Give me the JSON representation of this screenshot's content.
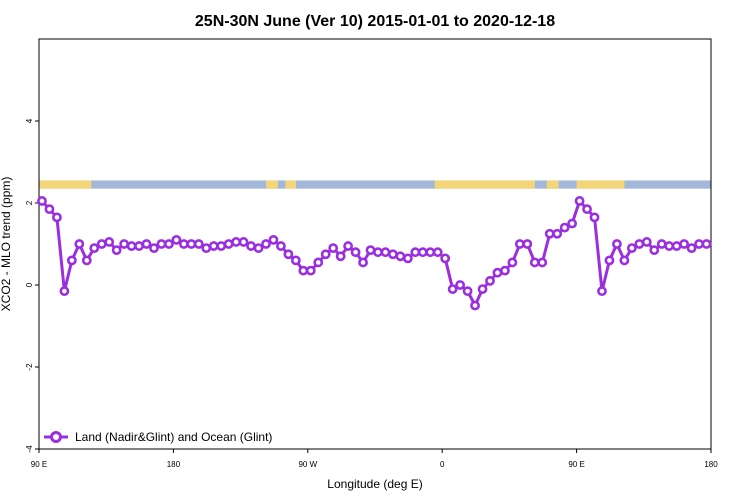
{
  "chart_data": {
    "type": "line",
    "title": "25N-30N June (Ver 10)   2015-01-01 to 2020-12-18",
    "xlabel": "Longitude (deg E)",
    "ylabel": "XCO2 - MLO trend (ppm)",
    "xlim": [
      -90,
      360
    ],
    "ylim": [
      -4,
      6
    ],
    "x_ticks": [
      {
        "value": -90,
        "label": "90 E"
      },
      {
        "value": 0,
        "label": "180"
      },
      {
        "value": 90,
        "label": "90 W"
      },
      {
        "value": 180,
        "label": "0"
      },
      {
        "value": 270,
        "label": "90 E"
      },
      {
        "value": 360,
        "label": "180"
      }
    ],
    "y_ticks": [
      {
        "value": -4,
        "label": "-4"
      },
      {
        "value": -2,
        "label": "-2"
      },
      {
        "value": 0,
        "label": "0"
      },
      {
        "value": 2,
        "label": "2"
      },
      {
        "value": 4,
        "label": "4"
      }
    ],
    "grid": false,
    "legend_position": "bottom-left",
    "series": [
      {
        "name": "Land (Nadir&Glint) and Ocean (Glint)",
        "color": "#9b2fe0",
        "x": [
          -88,
          -83,
          -78,
          -73,
          -68,
          -63,
          -58,
          -53,
          -48,
          -43,
          -38,
          -33,
          -28,
          -23,
          -18,
          -13,
          -8,
          -3,
          2,
          7,
          12,
          17,
          22,
          27,
          32,
          37,
          42,
          47,
          52,
          57,
          62,
          67,
          72,
          77,
          82,
          87,
          92,
          97,
          102,
          107,
          112,
          117,
          122,
          127,
          132,
          137,
          142,
          147,
          152,
          157,
          162,
          167,
          172,
          177,
          182,
          187,
          192,
          197,
          202,
          207,
          212,
          217,
          222,
          227,
          232,
          237,
          242,
          247,
          252,
          257,
          262,
          267,
          272,
          277,
          282,
          287,
          292,
          297,
          302,
          307,
          312,
          317,
          322,
          327,
          332,
          337,
          342,
          347,
          352,
          357
        ],
        "values": [
          2.05,
          1.85,
          1.65,
          -0.15,
          0.6,
          1.0,
          0.6,
          0.9,
          1.0,
          1.05,
          0.85,
          1.0,
          0.95,
          0.95,
          1.0,
          0.9,
          1.0,
          1.0,
          1.1,
          1.0,
          1.0,
          1.0,
          0.9,
          0.95,
          0.95,
          1.0,
          1.05,
          1.05,
          0.95,
          0.9,
          1.0,
          1.1,
          0.95,
          0.75,
          0.6,
          0.35,
          0.35,
          0.55,
          0.75,
          0.9,
          0.7,
          0.95,
          0.8,
          0.55,
          0.85,
          0.8,
          0.8,
          0.75,
          0.7,
          0.65,
          0.8,
          0.8,
          0.8,
          0.8,
          0.65,
          -0.1,
          0.0,
          -0.15,
          -0.5,
          -0.1,
          0.1,
          0.3,
          0.35,
          0.55,
          1.0,
          1.0,
          0.55,
          0.55,
          1.25,
          1.25,
          1.4,
          1.5,
          2.05,
          1.85,
          1.65,
          -0.15,
          0.6,
          1.0,
          0.6,
          0.9,
          1.0,
          1.05,
          0.85,
          1.0,
          0.95,
          0.95,
          1.0,
          0.9,
          1.0,
          1.0
        ]
      }
    ],
    "background_band": {
      "y_range": [
        2.35,
        2.55
      ],
      "ocean_color": "#a3b8d9",
      "land_color": "#f4d57a",
      "land_spans": [
        [
          -90,
          -55
        ],
        [
          62,
          70
        ],
        [
          75,
          82
        ],
        [
          175,
          242
        ],
        [
          250,
          258
        ],
        [
          270,
          302
        ]
      ]
    }
  }
}
